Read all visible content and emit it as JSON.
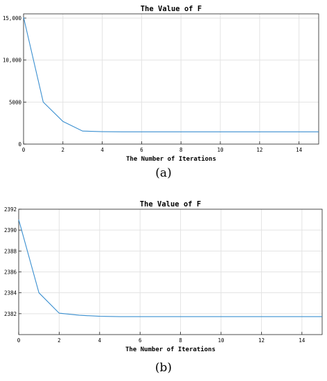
{
  "figure": {
    "captions": [
      "(a)",
      "(b)"
    ]
  },
  "colors": {
    "line": "#3a8fd0",
    "grid": "#e3e3e3",
    "axes": "#222222",
    "text": "#000000"
  },
  "chart_data": [
    {
      "type": "line",
      "title": "The Value of F",
      "xlabel": "The Number of Iterations",
      "ylabel": "",
      "xlim": [
        0,
        15
      ],
      "ylim": [
        0,
        15500
      ],
      "xticks": [
        0,
        2,
        4,
        6,
        8,
        10,
        12,
        14
      ],
      "xtick_labels": [
        "0",
        "2",
        "4",
        "6",
        "8",
        "10",
        "12",
        "14"
      ],
      "yticks": [
        0,
        5000,
        10000,
        15000
      ],
      "ytick_labels": [
        "0",
        "5000",
        "10,000",
        "15,000"
      ],
      "grid": true,
      "series": [
        {
          "x": [
            0,
            1,
            2,
            3,
            4,
            5,
            6,
            7,
            8,
            9,
            10,
            11,
            12,
            13,
            14,
            15
          ],
          "y": [
            15100,
            5000,
            2700,
            1550,
            1480,
            1460,
            1455,
            1455,
            1455,
            1455,
            1455,
            1455,
            1455,
            1455,
            1455,
            1455
          ]
        }
      ]
    },
    {
      "type": "line",
      "title": "The Value of F",
      "xlabel": "The Number of Iterations",
      "ylabel": "",
      "xlim": [
        0,
        15
      ],
      "ylim": [
        2380,
        2392
      ],
      "xticks": [
        0,
        2,
        4,
        6,
        8,
        10,
        12,
        14
      ],
      "xtick_labels": [
        "0",
        "2",
        "4",
        "6",
        "8",
        "10",
        "12",
        "14"
      ],
      "yticks": [
        2382,
        2384,
        2386,
        2388,
        2390,
        2392
      ],
      "ytick_labels": [
        "2382",
        "2384",
        "2386",
        "2388",
        "2390",
        "2392"
      ],
      "grid": true,
      "series": [
        {
          "x": [
            0,
            1,
            2,
            3,
            4,
            5,
            6,
            7,
            8,
            9,
            10,
            11,
            12,
            13,
            14,
            15
          ],
          "y": [
            2391,
            2384,
            2382.05,
            2381.85,
            2381.75,
            2381.72,
            2381.72,
            2381.72,
            2381.72,
            2381.72,
            2381.72,
            2381.72,
            2381.72,
            2381.72,
            2381.72,
            2381.72
          ]
        }
      ]
    }
  ]
}
